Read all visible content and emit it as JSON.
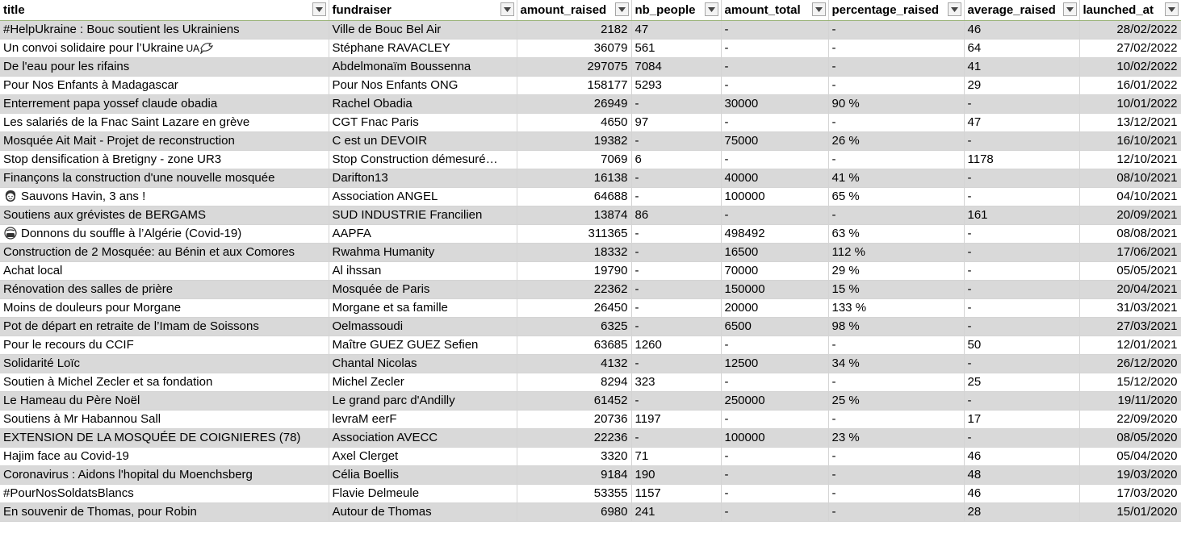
{
  "columns": [
    {
      "key": "title",
      "label": "title"
    },
    {
      "key": "fundraiser",
      "label": "fundraiser"
    },
    {
      "key": "amount_raised",
      "label": "amount_raised"
    },
    {
      "key": "nb_people",
      "label": "nb_people"
    },
    {
      "key": "amount_total",
      "label": "amount_total"
    },
    {
      "key": "percentage_raised",
      "label": "percentage_raised"
    },
    {
      "key": "average_raised",
      "label": "average_raised"
    },
    {
      "key": "launched_at",
      "label": "launched_at"
    }
  ],
  "rows": [
    {
      "title": "#HelpUkraine : Bouc soutient les Ukrainiens",
      "fundraiser": "Ville de Bouc Bel Air",
      "amount_raised": "2182",
      "nb_people": "47",
      "amount_total": "-",
      "percentage_raised": "-",
      "average_raised": "46",
      "launched_at": "28/02/2022"
    },
    {
      "title": "Un convoi solidaire pour l’Ukraine",
      "title_suffix": "UA",
      "title_icon": "dove-icon",
      "fundraiser": "Stéphane RAVACLEY",
      "amount_raised": "36079",
      "nb_people": "561",
      "amount_total": "-",
      "percentage_raised": "-",
      "average_raised": "64",
      "launched_at": "27/02/2022"
    },
    {
      "title": "De l'eau pour les rifains",
      "fundraiser": "Abdelmonaïm Boussenna",
      "amount_raised": "297075",
      "nb_people": "7084",
      "amount_total": "-",
      "percentage_raised": "-",
      "average_raised": "41",
      "launched_at": "10/02/2022"
    },
    {
      "title": "Pour Nos Enfants à Madagascar",
      "fundraiser": "Pour Nos Enfants ONG",
      "amount_raised": "158177",
      "nb_people": "5293",
      "amount_total": "-",
      "percentage_raised": "-",
      "average_raised": "29",
      "launched_at": "16/01/2022"
    },
    {
      "title": "Enterrement papa yossef claude obadia",
      "fundraiser": "Rachel Obadia",
      "amount_raised": "26949",
      "nb_people": "-",
      "amount_total": "30000",
      "percentage_raised": "90 %",
      "average_raised": "-",
      "launched_at": "10/01/2022"
    },
    {
      "title": "Les salariés de la Fnac Saint Lazare en grève",
      "fundraiser": "CGT Fnac Paris",
      "amount_raised": "4650",
      "nb_people": "97",
      "amount_total": "-",
      "percentage_raised": "-",
      "average_raised": "47",
      "launched_at": "13/12/2021"
    },
    {
      "title": "Mosquée Ait Mait - Projet de reconstruction",
      "fundraiser": "C est un DEVOIR",
      "amount_raised": "19382",
      "nb_people": "-",
      "amount_total": "75000",
      "percentage_raised": "26 %",
      "average_raised": "-",
      "launched_at": "16/10/2021"
    },
    {
      "title": "Stop densification à Bretigny - zone UR3",
      "fundraiser": "Stop Construction démesuré…",
      "amount_raised": "7069",
      "nb_people": "6",
      "amount_total": "-",
      "percentage_raised": "-",
      "average_raised": "1178",
      "launched_at": "12/10/2021"
    },
    {
      "title": "Finançons la construction d'une nouvelle mosquée",
      "fundraiser": "Darifton13",
      "amount_raised": "16138",
      "nb_people": "-",
      "amount_total": "40000",
      "percentage_raised": "41 %",
      "average_raised": "-",
      "launched_at": "08/10/2021"
    },
    {
      "title": "Sauvons Havin, 3 ans !",
      "title_icon": "girl-face-icon",
      "fundraiser": "Association ANGEL",
      "amount_raised": "64688",
      "nb_people": "-",
      "amount_total": "100000",
      "percentage_raised": "65 %",
      "average_raised": "-",
      "launched_at": "04/10/2021"
    },
    {
      "title": "Soutiens aux grévistes de BERGAMS",
      "fundraiser": "SUD INDUSTRIE Francilien",
      "amount_raised": "13874",
      "nb_people": "86",
      "amount_total": "-",
      "percentage_raised": "-",
      "average_raised": "161",
      "launched_at": "20/09/2021"
    },
    {
      "title": "Donnons du souffle à l’Algérie (Covid-19)",
      "title_icon": "mask-face-icon",
      "fundraiser": "AAPFA",
      "amount_raised": "311365",
      "nb_people": "-",
      "amount_total": "498492",
      "percentage_raised": "63 %",
      "average_raised": "-",
      "launched_at": "08/08/2021"
    },
    {
      "title": "Construction de 2 Mosquée: au Bénin et aux Comores",
      "fundraiser": "Rwahma Humanity",
      "amount_raised": "18332",
      "nb_people": "-",
      "amount_total": "16500",
      "percentage_raised": "112 %",
      "average_raised": "-",
      "launched_at": "17/06/2021"
    },
    {
      "title": "Achat local",
      "fundraiser": "Al ihssan",
      "amount_raised": "19790",
      "nb_people": "-",
      "amount_total": "70000",
      "percentage_raised": "29 %",
      "average_raised": "-",
      "launched_at": "05/05/2021"
    },
    {
      "title": "Rénovation des salles de prière",
      "fundraiser": "Mosquée de Paris",
      "amount_raised": "22362",
      "nb_people": "-",
      "amount_total": "150000",
      "percentage_raised": "15 %",
      "average_raised": "-",
      "launched_at": "20/04/2021"
    },
    {
      "title": "Moins de douleurs pour Morgane",
      "fundraiser": "Morgane et sa famille",
      "amount_raised": "26450",
      "nb_people": "-",
      "amount_total": "20000",
      "percentage_raised": "133 %",
      "average_raised": "-",
      "launched_at": "31/03/2021"
    },
    {
      "title": "Pot de départ en retraite de l’Imam de Soissons",
      "fundraiser": "Oelmassoudi",
      "amount_raised": "6325",
      "nb_people": "-",
      "amount_total": "6500",
      "percentage_raised": "98 %",
      "average_raised": "-",
      "launched_at": "27/03/2021"
    },
    {
      "title": "Pour le recours du CCIF",
      "fundraiser": "Maître GUEZ GUEZ Sefien",
      "amount_raised": "63685",
      "nb_people": "1260",
      "amount_total": "-",
      "percentage_raised": "-",
      "average_raised": "50",
      "launched_at": "12/01/2021"
    },
    {
      "title": "Solidarité Loïc",
      "fundraiser": "Chantal Nicolas",
      "amount_raised": "4132",
      "nb_people": "-",
      "amount_total": "12500",
      "percentage_raised": "34 %",
      "average_raised": "-",
      "launched_at": "26/12/2020"
    },
    {
      "title": "Soutien à Michel Zecler et sa fondation",
      "fundraiser": "Michel Zecler",
      "amount_raised": "8294",
      "nb_people": "323",
      "amount_total": "-",
      "percentage_raised": "-",
      "average_raised": "25",
      "launched_at": "15/12/2020"
    },
    {
      "title": "Le Hameau du Père Noël",
      "fundraiser": "Le grand parc d'Andilly",
      "amount_raised": "61452",
      "nb_people": "-",
      "amount_total": "250000",
      "percentage_raised": "25 %",
      "average_raised": "-",
      "launched_at": "19/11/2020"
    },
    {
      "title": "Soutiens à Mr Habannou Sall",
      "fundraiser": "levraM eerF",
      "amount_raised": "20736",
      "nb_people": "1197",
      "amount_total": "-",
      "percentage_raised": "-",
      "average_raised": "17",
      "launched_at": "22/09/2020"
    },
    {
      "title": "EXTENSION DE LA MOSQUÉE DE COIGNIERES (78)",
      "fundraiser": "Association AVECC",
      "amount_raised": "22236",
      "nb_people": "-",
      "amount_total": "100000",
      "percentage_raised": "23 %",
      "average_raised": "-",
      "launched_at": "08/05/2020"
    },
    {
      "title": "Hajim face au Covid-19",
      "fundraiser": "Axel Clerget",
      "amount_raised": "3320",
      "nb_people": "71",
      "amount_total": "-",
      "percentage_raised": "-",
      "average_raised": "46",
      "launched_at": "05/04/2020"
    },
    {
      "title": "Coronavirus : Aidons l'hopital du Moenchsberg",
      "fundraiser": "Célia Boellis",
      "amount_raised": "9184",
      "nb_people": "190",
      "amount_total": "-",
      "percentage_raised": "-",
      "average_raised": "48",
      "launched_at": "19/03/2020"
    },
    {
      "title": "#PourNosSoldatsBlancs",
      "fundraiser": "Flavie Delmeule",
      "amount_raised": "53355",
      "nb_people": "1157",
      "amount_total": "-",
      "percentage_raised": "-",
      "average_raised": "46",
      "launched_at": "17/03/2020"
    },
    {
      "title": "En souvenir de Thomas, pour Robin",
      "fundraiser": "Autour de Thomas",
      "amount_raised": "6980",
      "nb_people": "241",
      "amount_total": "-",
      "percentage_raised": "-",
      "average_raised": "28",
      "launched_at": "15/01/2020"
    }
  ],
  "colors": {
    "band": "#d9d9d9",
    "grid": "#d4d4d4",
    "header_underline": "#9bb37a"
  }
}
